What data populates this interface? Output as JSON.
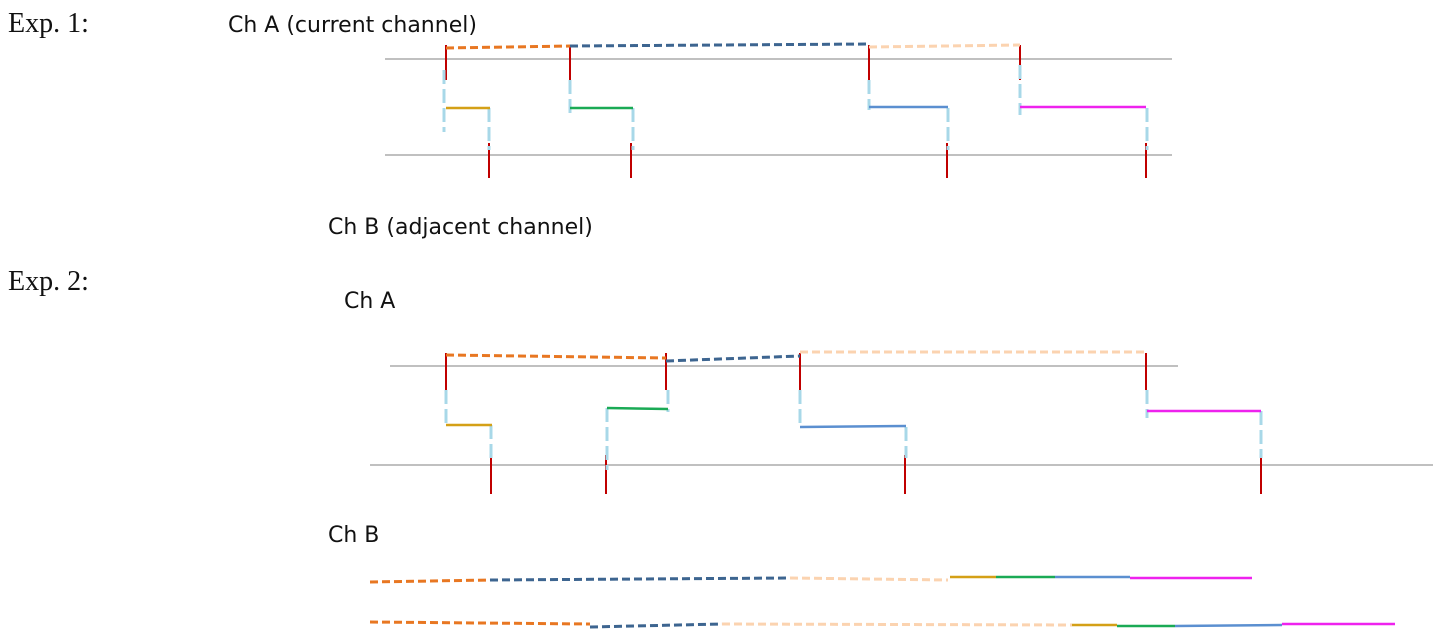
{
  "experiments": [
    {
      "label": "Exp. 1:",
      "channel_a": "Ch A (current channel)",
      "channel_b": "Ch B (adjacent channel)"
    },
    {
      "label": "Exp. 2:",
      "channel_a": "Ch A",
      "channel_b": "Ch B"
    }
  ]
}
